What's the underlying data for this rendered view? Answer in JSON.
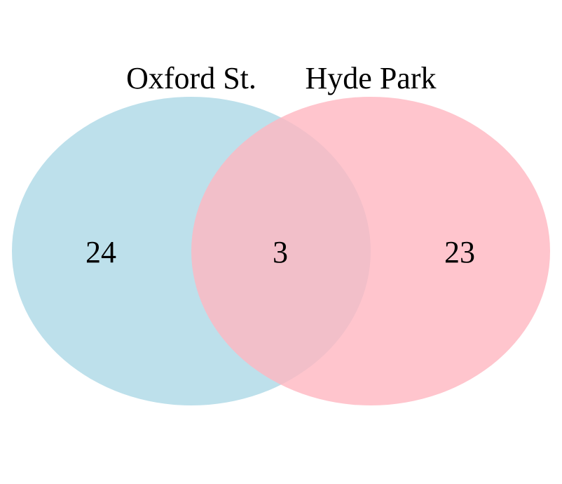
{
  "diagram": {
    "type": "venn",
    "sets": [
      {
        "label": "Oxford St.",
        "color": "#add8e6"
      },
      {
        "label": "Hyde Park",
        "color": "#ffb6c1"
      }
    ],
    "regions": {
      "only_a": "24",
      "intersection": "3",
      "only_b": "23"
    }
  }
}
